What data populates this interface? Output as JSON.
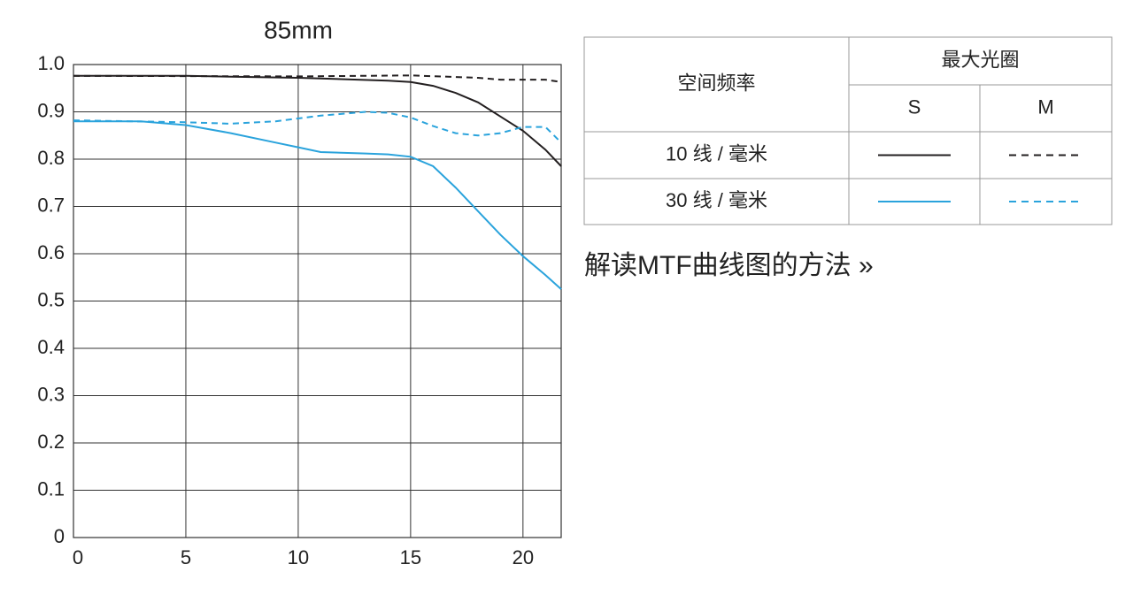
{
  "chart_data": {
    "type": "line",
    "title": "85mm",
    "xlim": [
      0,
      21.7
    ],
    "ylim": [
      0,
      1
    ],
    "xticks": [
      0,
      5,
      10,
      15,
      20
    ],
    "yticks": [
      0,
      0.1,
      0.2,
      0.3,
      0.4,
      0.5,
      0.6,
      0.7,
      0.8,
      0.9,
      {
        "value": 1,
        "label": "1.0"
      }
    ],
    "grid": true,
    "series": [
      {
        "color": "#231f20",
        "dash": false,
        "x": [
          0,
          5,
          10,
          14,
          15,
          16,
          17,
          18,
          19,
          20,
          21,
          21.7
        ],
        "values": [
          0.976,
          0.976,
          0.972,
          0.966,
          0.963,
          0.955,
          0.94,
          0.92,
          0.89,
          0.86,
          0.82,
          0.785
        ]
      },
      {
        "color": "#231f20",
        "dash": true,
        "x": [
          0,
          10,
          15,
          18,
          19,
          20,
          21,
          21.7
        ],
        "values": [
          0.976,
          0.975,
          0.977,
          0.972,
          0.968,
          0.968,
          0.968,
          0.963
        ]
      },
      {
        "color": "#2aa3dc",
        "dash": false,
        "x": [
          0,
          3,
          5,
          7,
          9,
          10,
          11,
          13,
          14,
          15,
          16,
          17,
          18,
          19,
          20,
          21,
          21.7
        ],
        "values": [
          0.88,
          0.88,
          0.872,
          0.855,
          0.835,
          0.825,
          0.815,
          0.812,
          0.81,
          0.805,
          0.785,
          0.74,
          0.69,
          0.64,
          0.595,
          0.555,
          0.525
        ]
      },
      {
        "color": "#2aa3dc",
        "dash": true,
        "x": [
          0,
          5,
          7,
          9,
          11,
          13,
          14,
          15,
          16,
          17,
          18,
          19,
          20,
          21,
          21.7
        ],
        "values": [
          0.882,
          0.878,
          0.875,
          0.88,
          0.892,
          0.9,
          0.898,
          0.888,
          0.87,
          0.855,
          0.85,
          0.855,
          0.868,
          0.868,
          0.835
        ]
      }
    ],
    "legend_table": {
      "row_header": "空间频率",
      "group_header": "最大光圈",
      "columns": [
        "S",
        "M"
      ],
      "rows": [
        "10 线 / 毫米",
        "30 线 / 毫米"
      ]
    }
  },
  "link": "解读MTF曲线图的方法 »"
}
